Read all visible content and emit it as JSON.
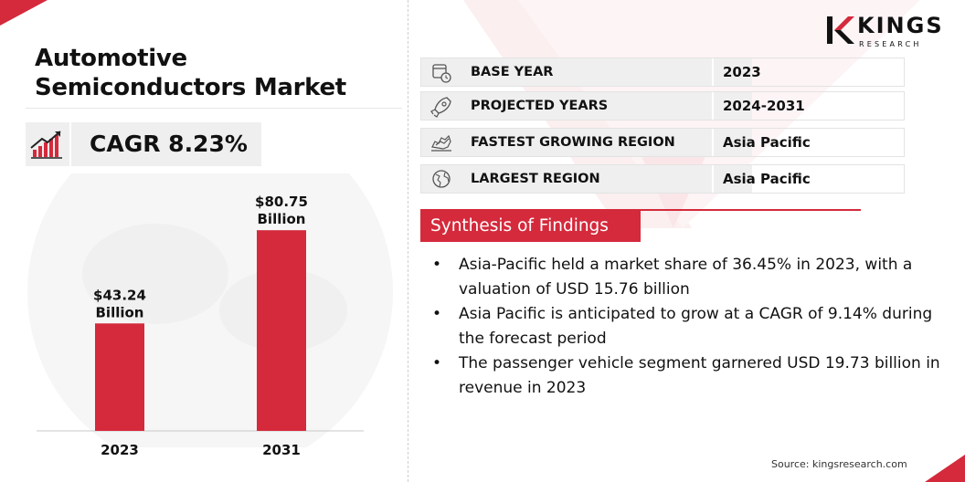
{
  "title": "Automotive Semiconductors Market",
  "cagr": {
    "text": "CAGR 8.23%",
    "icon": "growth-chart-icon"
  },
  "info_rows": [
    {
      "icon": "calendar-clock-icon",
      "label": "BASE YEAR",
      "value": "2023"
    },
    {
      "icon": "rocket-icon",
      "label": "PROJECTED YEARS",
      "value": "2024-2031"
    },
    {
      "icon": "growth-map-icon",
      "label": "FASTEST GROWING REGION",
      "value": "Asia Pacific"
    },
    {
      "icon": "globe-icon",
      "label": "LARGEST REGION",
      "value": "Asia Pacific"
    }
  ],
  "synthesis": {
    "title": "Synthesis of Findings",
    "bullet": "•",
    "items": [
      "Asia-Pacific held a market share of 36.45% in 2023, with a valuation of USD 15.76 billion",
      "Asia Pacific is anticipated to grow at a CAGR of 9.14% during the forecast period",
      "The passenger vehicle segment garnered USD 19.73 billion in revenue in 2023"
    ]
  },
  "logo": {
    "name": "KINGS",
    "sub": "RESEARCH"
  },
  "source": "Source: kingsresearch.com",
  "colors": {
    "accent": "#d42a3c",
    "panel": "#efefef"
  },
  "chart_data": {
    "type": "bar",
    "categories": [
      "2023",
      "2031"
    ],
    "values": [
      43.24,
      80.75
    ],
    "data_labels": [
      [
        "$43.24",
        "Billion"
      ],
      [
        "$80.75",
        "Billion"
      ]
    ],
    "ylim": [
      0,
      90
    ],
    "color": "#d42a3c",
    "grid": false
  }
}
